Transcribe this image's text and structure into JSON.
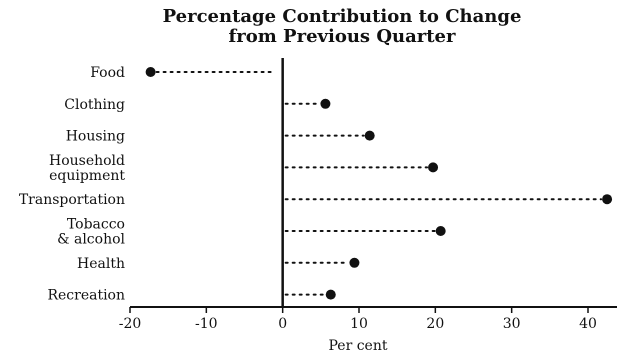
{
  "chart_data": {
    "type": "dot",
    "title_lines": [
      "Percentage Contribution to Change",
      "from Previous Quarter"
    ],
    "xlabel": "Per cent",
    "xlim": [
      -20,
      44
    ],
    "xticks": [
      -20,
      -10,
      0,
      10,
      20,
      30,
      40
    ],
    "categories": [
      {
        "label_lines": [
          "Food"
        ],
        "value": -17.3
      },
      {
        "label_lines": [
          "Clothing"
        ],
        "value": 5.6
      },
      {
        "label_lines": [
          "Housing"
        ],
        "value": 11.4
      },
      {
        "label_lines": [
          "Household",
          "equipment"
        ],
        "value": 19.7
      },
      {
        "label_lines": [
          "Transportation"
        ],
        "value": 42.5
      },
      {
        "label_lines": [
          "Tobacco",
          "& alcohol"
        ],
        "value": 20.7
      },
      {
        "label_lines": [
          "Health"
        ],
        "value": 9.4
      },
      {
        "label_lines": [
          "Recreation"
        ],
        "value": 6.3
      }
    ],
    "grid": false,
    "legend": "none",
    "colors": {
      "ink": "#111111"
    }
  }
}
